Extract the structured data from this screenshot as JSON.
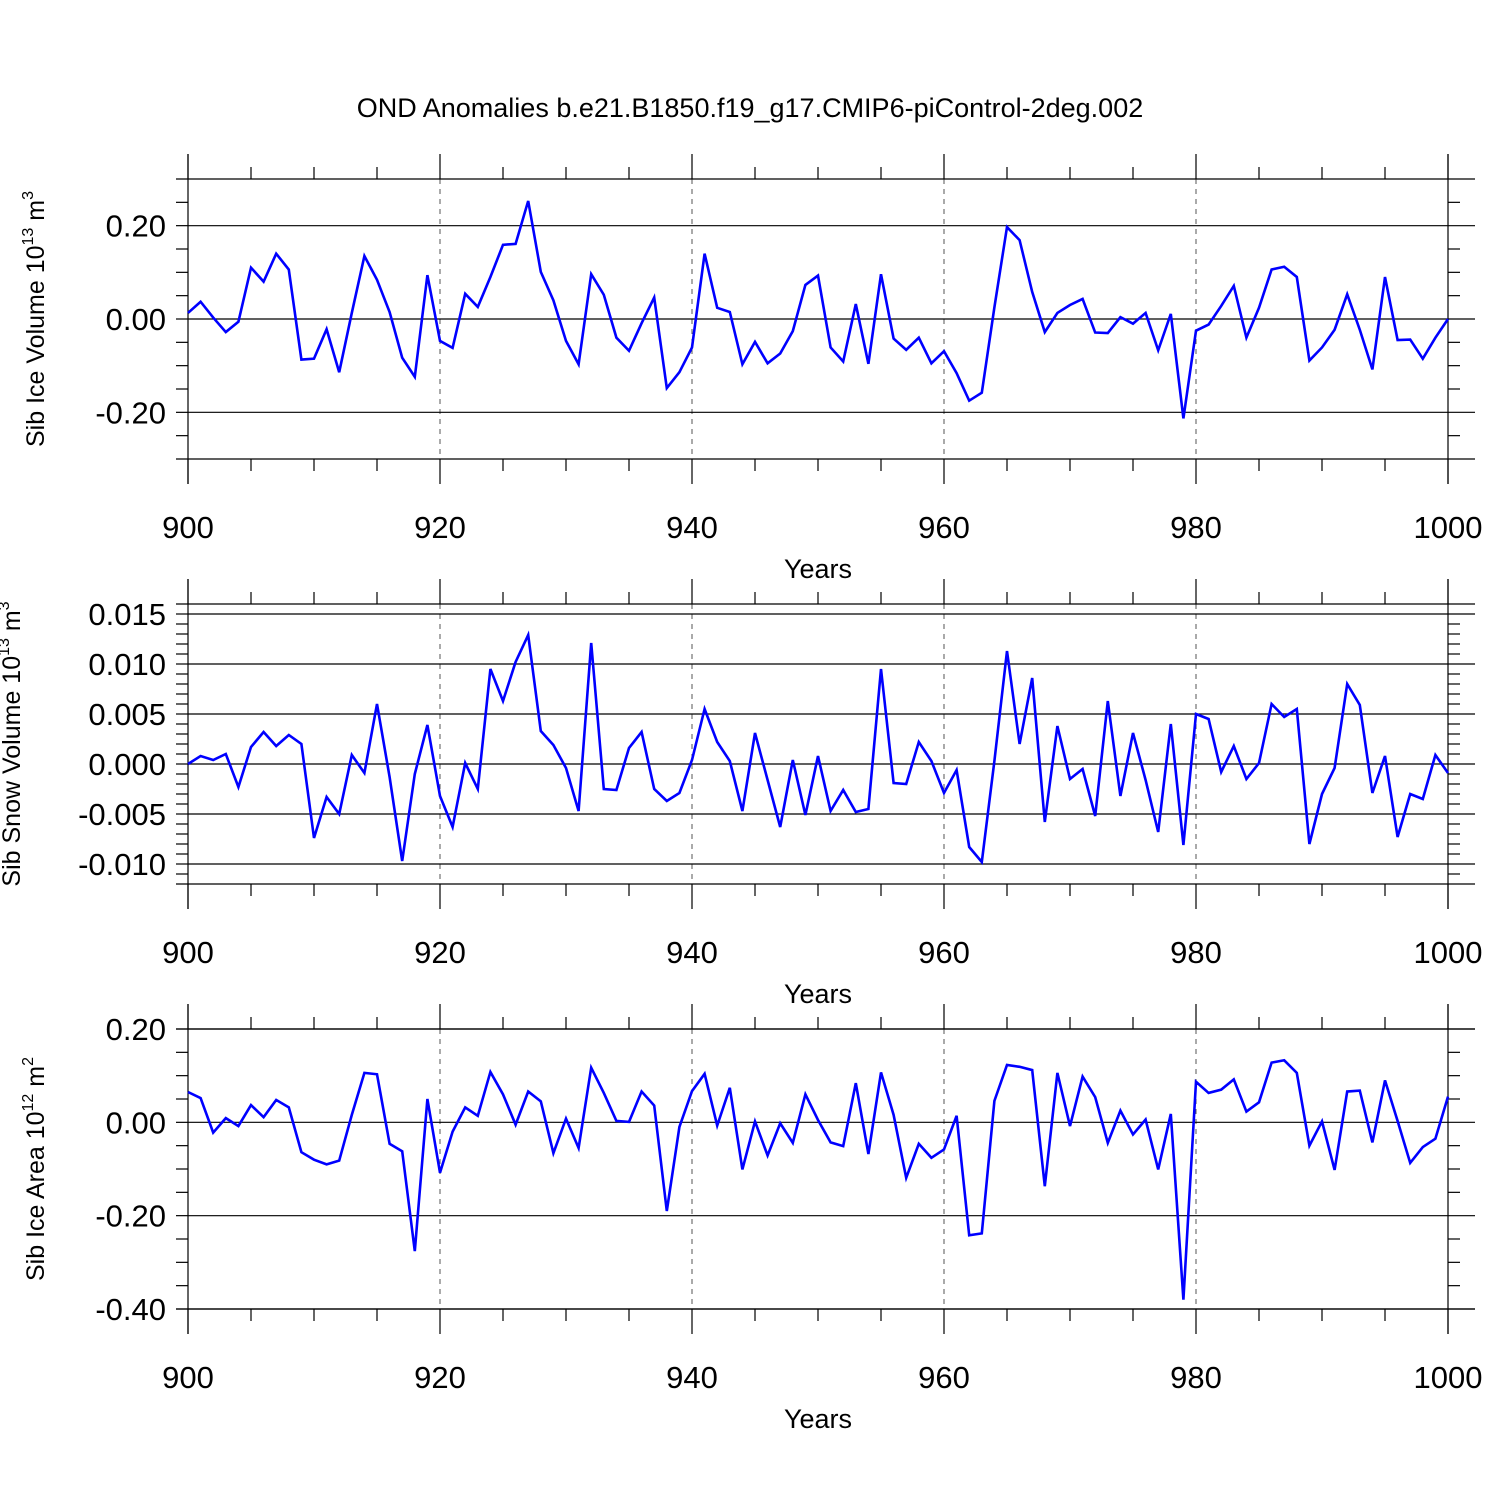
{
  "title": "OND Anomalies b.e21.B1850.f19_g17.CMIP6-piControl-2deg.002",
  "colors": {
    "line": "#0000ff",
    "frame": "#000000",
    "grid": "#555555"
  },
  "chart_data": [
    {
      "type": "line",
      "ylabel": "Sib Ice Volume 10",
      "ylabel_exp": "13",
      "ylabel_unit": " m",
      "ylabel_unit_exp": "3",
      "xlabel": "Years",
      "xlim": [
        900,
        1000
      ],
      "ylim": [
        -0.3,
        0.3
      ],
      "xticks": [
        900,
        920,
        940,
        960,
        980,
        1000
      ],
      "yticks": [
        -0.2,
        0.0,
        0.2
      ],
      "ytick_labels": [
        "-0.20",
        "0.00",
        "0.20"
      ],
      "yminor": [
        -0.25,
        -0.15,
        -0.1,
        -0.05,
        0.05,
        0.1,
        0.15,
        0.25
      ],
      "grid": "vertical dashed at major x ticks",
      "x_start": 900,
      "values": [
        0.013,
        0.037,
        0.003,
        -0.028,
        -0.006,
        0.11,
        0.08,
        0.14,
        0.106,
        -0.087,
        -0.085,
        -0.022,
        -0.114,
        0.013,
        0.135,
        0.084,
        0.015,
        -0.083,
        -0.124,
        0.094,
        -0.047,
        -0.062,
        0.054,
        0.026,
        0.09,
        0.159,
        0.161,
        0.253,
        0.101,
        0.04,
        -0.047,
        -0.097,
        0.096,
        0.052,
        -0.04,
        -0.068,
        -0.009,
        0.046,
        -0.148,
        -0.114,
        -0.061,
        0.14,
        0.024,
        0.015,
        -0.097,
        -0.049,
        -0.095,
        -0.074,
        -0.026,
        0.073,
        0.093,
        -0.061,
        -0.091,
        0.032,
        -0.096,
        0.096,
        -0.042,
        -0.066,
        -0.04,
        -0.095,
        -0.069,
        -0.116,
        -0.175,
        -0.158,
        0.025,
        0.197,
        0.169,
        0.058,
        -0.028,
        0.013,
        0.03,
        0.043,
        -0.029,
        -0.03,
        0.004,
        -0.01,
        0.013,
        -0.067,
        0.011,
        -0.213,
        -0.025,
        -0.012,
        0.028,
        0.071,
        -0.04,
        0.024,
        0.106,
        0.112,
        0.09,
        -0.089,
        -0.061,
        -0.023,
        0.053,
        -0.023,
        -0.108,
        0.09,
        -0.045,
        -0.044,
        -0.085,
        -0.04,
        0.0
      ]
    },
    {
      "type": "line",
      "ylabel": "Sib Snow Volume 10",
      "ylabel_exp": "13",
      "ylabel_unit": " m",
      "ylabel_unit_exp": "3",
      "xlabel": "Years",
      "xlim": [
        900,
        1000
      ],
      "ylim": [
        -0.012,
        0.016
      ],
      "xticks": [
        900,
        920,
        940,
        960,
        980,
        1000
      ],
      "yticks": [
        -0.01,
        -0.005,
        0.0,
        0.005,
        0.01,
        0.015
      ],
      "ytick_labels": [
        "-0.010",
        "-0.005",
        "0.000",
        "0.005",
        "0.010",
        "0.015"
      ],
      "yminor": [
        -0.011,
        -0.009,
        -0.008,
        -0.007,
        -0.006,
        -0.004,
        -0.003,
        -0.002,
        -0.001,
        0.001,
        0.002,
        0.003,
        0.004,
        0.006,
        0.007,
        0.008,
        0.009,
        0.011,
        0.012,
        0.013,
        0.014
      ],
      "grid": "vertical dashed at major x ticks",
      "x_start": 900,
      "values": [
        0.0,
        0.0008,
        0.0004,
        0.001,
        -0.0023,
        0.0017,
        0.0032,
        0.0018,
        0.0029,
        0.002,
        -0.0074,
        -0.0033,
        -0.005,
        0.0009,
        -0.0009,
        0.006,
        -0.0013,
        -0.0097,
        -0.001,
        0.0039,
        -0.0032,
        -0.0063,
        0.0001,
        -0.0025,
        0.0095,
        0.0063,
        0.0102,
        0.0129,
        0.0033,
        0.0019,
        -0.0004,
        -0.0047,
        0.0121,
        -0.0025,
        -0.0026,
        0.0016,
        0.0032,
        -0.0025,
        -0.0037,
        -0.0029,
        0.0004,
        0.0055,
        0.0022,
        0.0003,
        -0.0047,
        0.0031,
        -0.0016,
        -0.0063,
        0.0004,
        -0.0051,
        0.0008,
        -0.0047,
        -0.0026,
        -0.0048,
        -0.0045,
        0.0095,
        -0.0019,
        -0.002,
        0.0022,
        0.0003,
        -0.0029,
        -0.0006,
        -0.0083,
        -0.0098,
        0.0003,
        0.0113,
        0.002,
        0.0086,
        -0.0058,
        0.0038,
        -0.0015,
        -0.0005,
        -0.0052,
        0.0063,
        -0.0032,
        0.0031,
        -0.0016,
        -0.0068,
        0.004,
        -0.0081,
        0.005,
        0.0045,
        -0.0008,
        0.0018,
        -0.0015,
        0.0001,
        0.006,
        0.0047,
        0.0055,
        -0.008,
        -0.003,
        -0.0004,
        0.008,
        0.0059,
        -0.0029,
        0.0008,
        -0.0073,
        -0.003,
        -0.0035,
        0.0009,
        -0.0009
      ]
    },
    {
      "type": "line",
      "ylabel": "Sib Ice Area 10",
      "ylabel_exp": "12",
      "ylabel_unit": " m",
      "ylabel_unit_exp": "2",
      "xlabel": "Years",
      "xlim": [
        900,
        1000
      ],
      "ylim": [
        -0.4,
        0.2
      ],
      "xticks": [
        900,
        920,
        940,
        960,
        980,
        1000
      ],
      "yticks": [
        -0.4,
        -0.2,
        0.0,
        0.2
      ],
      "ytick_labels": [
        "-0.40",
        "-0.20",
        "0.00",
        "0.20"
      ],
      "yminor": [
        -0.35,
        -0.3,
        -0.25,
        -0.15,
        -0.1,
        -0.05,
        0.05,
        0.1,
        0.15
      ],
      "grid": "vertical dashed at major x ticks",
      "x_start": 900,
      "values": [
        0.065,
        0.052,
        -0.022,
        0.009,
        -0.008,
        0.037,
        0.011,
        0.048,
        0.032,
        -0.064,
        -0.08,
        -0.09,
        -0.082,
        0.016,
        0.106,
        0.103,
        -0.046,
        -0.062,
        -0.276,
        0.05,
        -0.108,
        -0.02,
        0.032,
        0.014,
        0.108,
        0.06,
        -0.005,
        0.066,
        0.045,
        -0.066,
        0.008,
        -0.055,
        0.117,
        0.063,
        0.003,
        0.001,
        0.066,
        0.036,
        -0.19,
        -0.01,
        0.067,
        0.104,
        -0.007,
        0.074,
        -0.101,
        0.002,
        -0.071,
        -0.002,
        -0.044,
        0.06,
        0.005,
        -0.043,
        -0.051,
        0.084,
        -0.068,
        0.107,
        0.016,
        -0.119,
        -0.046,
        -0.076,
        -0.058,
        0.014,
        -0.242,
        -0.238,
        0.046,
        0.123,
        0.119,
        0.112,
        -0.137,
        0.106,
        -0.008,
        0.098,
        0.054,
        -0.044,
        0.025,
        -0.026,
        0.006,
        -0.101,
        0.018,
        -0.38,
        0.087,
        0.063,
        0.07,
        0.092,
        0.023,
        0.043,
        0.128,
        0.133,
        0.106,
        -0.05,
        0.002,
        -0.102,
        0.066,
        0.068,
        -0.043,
        0.09,
        0.003,
        -0.087,
        -0.053,
        -0.035,
        0.055
      ]
    }
  ]
}
